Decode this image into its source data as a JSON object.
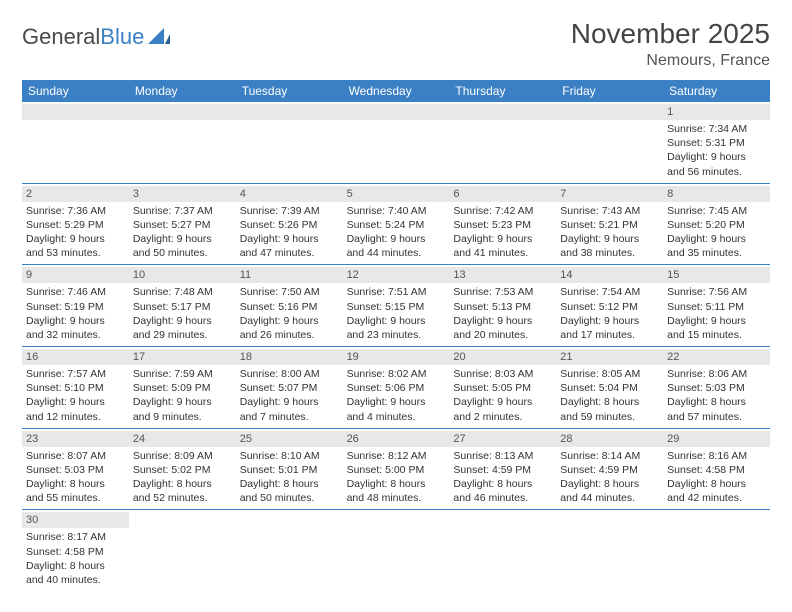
{
  "logo": {
    "text1": "General",
    "text2": "Blue"
  },
  "title": "November 2025",
  "location": "Nemours, France",
  "colors": {
    "header_bg": "#3b7fc4",
    "header_text": "#ffffff",
    "daynum_bg": "#e8e8e8",
    "border": "#3b7fc4",
    "body_text": "#333333"
  },
  "days_of_week": [
    "Sunday",
    "Monday",
    "Tuesday",
    "Wednesday",
    "Thursday",
    "Friday",
    "Saturday"
  ],
  "weeks": [
    [
      {
        "n": "",
        "sr": "",
        "ss": "",
        "dl": ""
      },
      {
        "n": "",
        "sr": "",
        "ss": "",
        "dl": ""
      },
      {
        "n": "",
        "sr": "",
        "ss": "",
        "dl": ""
      },
      {
        "n": "",
        "sr": "",
        "ss": "",
        "dl": ""
      },
      {
        "n": "",
        "sr": "",
        "ss": "",
        "dl": ""
      },
      {
        "n": "",
        "sr": "",
        "ss": "",
        "dl": ""
      },
      {
        "n": "1",
        "sr": "Sunrise: 7:34 AM",
        "ss": "Sunset: 5:31 PM",
        "dl": "Daylight: 9 hours and 56 minutes."
      }
    ],
    [
      {
        "n": "2",
        "sr": "Sunrise: 7:36 AM",
        "ss": "Sunset: 5:29 PM",
        "dl": "Daylight: 9 hours and 53 minutes."
      },
      {
        "n": "3",
        "sr": "Sunrise: 7:37 AM",
        "ss": "Sunset: 5:27 PM",
        "dl": "Daylight: 9 hours and 50 minutes."
      },
      {
        "n": "4",
        "sr": "Sunrise: 7:39 AM",
        "ss": "Sunset: 5:26 PM",
        "dl": "Daylight: 9 hours and 47 minutes."
      },
      {
        "n": "5",
        "sr": "Sunrise: 7:40 AM",
        "ss": "Sunset: 5:24 PM",
        "dl": "Daylight: 9 hours and 44 minutes."
      },
      {
        "n": "6",
        "sr": "Sunrise: 7:42 AM",
        "ss": "Sunset: 5:23 PM",
        "dl": "Daylight: 9 hours and 41 minutes."
      },
      {
        "n": "7",
        "sr": "Sunrise: 7:43 AM",
        "ss": "Sunset: 5:21 PM",
        "dl": "Daylight: 9 hours and 38 minutes."
      },
      {
        "n": "8",
        "sr": "Sunrise: 7:45 AM",
        "ss": "Sunset: 5:20 PM",
        "dl": "Daylight: 9 hours and 35 minutes."
      }
    ],
    [
      {
        "n": "9",
        "sr": "Sunrise: 7:46 AM",
        "ss": "Sunset: 5:19 PM",
        "dl": "Daylight: 9 hours and 32 minutes."
      },
      {
        "n": "10",
        "sr": "Sunrise: 7:48 AM",
        "ss": "Sunset: 5:17 PM",
        "dl": "Daylight: 9 hours and 29 minutes."
      },
      {
        "n": "11",
        "sr": "Sunrise: 7:50 AM",
        "ss": "Sunset: 5:16 PM",
        "dl": "Daylight: 9 hours and 26 minutes."
      },
      {
        "n": "12",
        "sr": "Sunrise: 7:51 AM",
        "ss": "Sunset: 5:15 PM",
        "dl": "Daylight: 9 hours and 23 minutes."
      },
      {
        "n": "13",
        "sr": "Sunrise: 7:53 AM",
        "ss": "Sunset: 5:13 PM",
        "dl": "Daylight: 9 hours and 20 minutes."
      },
      {
        "n": "14",
        "sr": "Sunrise: 7:54 AM",
        "ss": "Sunset: 5:12 PM",
        "dl": "Daylight: 9 hours and 17 minutes."
      },
      {
        "n": "15",
        "sr": "Sunrise: 7:56 AM",
        "ss": "Sunset: 5:11 PM",
        "dl": "Daylight: 9 hours and 15 minutes."
      }
    ],
    [
      {
        "n": "16",
        "sr": "Sunrise: 7:57 AM",
        "ss": "Sunset: 5:10 PM",
        "dl": "Daylight: 9 hours and 12 minutes."
      },
      {
        "n": "17",
        "sr": "Sunrise: 7:59 AM",
        "ss": "Sunset: 5:09 PM",
        "dl": "Daylight: 9 hours and 9 minutes."
      },
      {
        "n": "18",
        "sr": "Sunrise: 8:00 AM",
        "ss": "Sunset: 5:07 PM",
        "dl": "Daylight: 9 hours and 7 minutes."
      },
      {
        "n": "19",
        "sr": "Sunrise: 8:02 AM",
        "ss": "Sunset: 5:06 PM",
        "dl": "Daylight: 9 hours and 4 minutes."
      },
      {
        "n": "20",
        "sr": "Sunrise: 8:03 AM",
        "ss": "Sunset: 5:05 PM",
        "dl": "Daylight: 9 hours and 2 minutes."
      },
      {
        "n": "21",
        "sr": "Sunrise: 8:05 AM",
        "ss": "Sunset: 5:04 PM",
        "dl": "Daylight: 8 hours and 59 minutes."
      },
      {
        "n": "22",
        "sr": "Sunrise: 8:06 AM",
        "ss": "Sunset: 5:03 PM",
        "dl": "Daylight: 8 hours and 57 minutes."
      }
    ],
    [
      {
        "n": "23",
        "sr": "Sunrise: 8:07 AM",
        "ss": "Sunset: 5:03 PM",
        "dl": "Daylight: 8 hours and 55 minutes."
      },
      {
        "n": "24",
        "sr": "Sunrise: 8:09 AM",
        "ss": "Sunset: 5:02 PM",
        "dl": "Daylight: 8 hours and 52 minutes."
      },
      {
        "n": "25",
        "sr": "Sunrise: 8:10 AM",
        "ss": "Sunset: 5:01 PM",
        "dl": "Daylight: 8 hours and 50 minutes."
      },
      {
        "n": "26",
        "sr": "Sunrise: 8:12 AM",
        "ss": "Sunset: 5:00 PM",
        "dl": "Daylight: 8 hours and 48 minutes."
      },
      {
        "n": "27",
        "sr": "Sunrise: 8:13 AM",
        "ss": "Sunset: 4:59 PM",
        "dl": "Daylight: 8 hours and 46 minutes."
      },
      {
        "n": "28",
        "sr": "Sunrise: 8:14 AM",
        "ss": "Sunset: 4:59 PM",
        "dl": "Daylight: 8 hours and 44 minutes."
      },
      {
        "n": "29",
        "sr": "Sunrise: 8:16 AM",
        "ss": "Sunset: 4:58 PM",
        "dl": "Daylight: 8 hours and 42 minutes."
      }
    ],
    [
      {
        "n": "30",
        "sr": "Sunrise: 8:17 AM",
        "ss": "Sunset: 4:58 PM",
        "dl": "Daylight: 8 hours and 40 minutes."
      },
      {
        "n": "",
        "sr": "",
        "ss": "",
        "dl": ""
      },
      {
        "n": "",
        "sr": "",
        "ss": "",
        "dl": ""
      },
      {
        "n": "",
        "sr": "",
        "ss": "",
        "dl": ""
      },
      {
        "n": "",
        "sr": "",
        "ss": "",
        "dl": ""
      },
      {
        "n": "",
        "sr": "",
        "ss": "",
        "dl": ""
      },
      {
        "n": "",
        "sr": "",
        "ss": "",
        "dl": ""
      }
    ]
  ]
}
